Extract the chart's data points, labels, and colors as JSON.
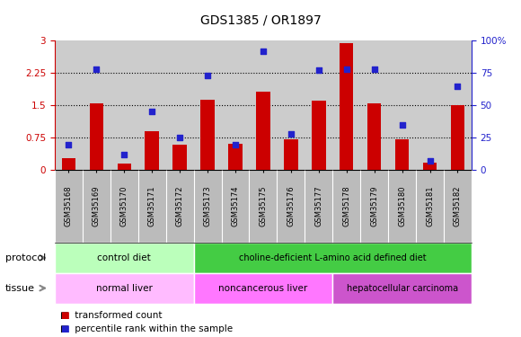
{
  "title": "GDS1385 / OR1897",
  "samples": [
    "GSM35168",
    "GSM35169",
    "GSM35170",
    "GSM35171",
    "GSM35172",
    "GSM35173",
    "GSM35174",
    "GSM35175",
    "GSM35176",
    "GSM35177",
    "GSM35178",
    "GSM35179",
    "GSM35180",
    "GSM35181",
    "GSM35182"
  ],
  "bar_values": [
    0.28,
    1.55,
    0.15,
    0.9,
    0.58,
    1.62,
    0.62,
    1.82,
    0.72,
    1.6,
    2.93,
    1.55,
    0.72,
    0.18,
    1.5
  ],
  "dot_values": [
    20,
    78,
    12,
    45,
    25,
    73,
    20,
    92,
    28,
    77,
    78,
    78,
    35,
    7,
    65
  ],
  "ylim_left": [
    0,
    3
  ],
  "ylim_right": [
    0,
    100
  ],
  "yticks_left": [
    0,
    0.75,
    1.5,
    2.25,
    3
  ],
  "yticks_right": [
    0,
    25,
    50,
    75,
    100
  ],
  "ytick_labels_left": [
    "0",
    "0.75",
    "1.5",
    "2.25",
    "3"
  ],
  "ytick_labels_right": [
    "0",
    "25",
    "50",
    "75",
    "100%"
  ],
  "protocol_groups": [
    {
      "label": "control diet",
      "start": 0,
      "end": 4,
      "color": "#bbffbb"
    },
    {
      "label": "choline-deficient L-amino acid defined diet",
      "start": 5,
      "end": 14,
      "color": "#44cc44"
    }
  ],
  "tissue_groups": [
    {
      "label": "normal liver",
      "start": 0,
      "end": 4,
      "color": "#ffbbff"
    },
    {
      "label": "noncancerous liver",
      "start": 5,
      "end": 9,
      "color": "#ff77ff"
    },
    {
      "label": "hepatocellular carcinoma",
      "start": 10,
      "end": 14,
      "color": "#cc55cc"
    }
  ],
  "bar_color": "#cc0000",
  "dot_color": "#2222cc",
  "title_fontsize": 10,
  "axis_label_color_left": "#cc0000",
  "axis_label_color_right": "#2222cc",
  "legend_items": [
    {
      "label": "transformed count",
      "color": "#cc0000"
    },
    {
      "label": "percentile rank within the sample",
      "color": "#2222cc"
    }
  ],
  "row_label_protocol": "protocol",
  "row_label_tissue": "tissue",
  "background_color": "#ffffff",
  "plot_bg_color": "#cccccc",
  "xlabels_bg_color": "#bbbbbb",
  "dotted_lines": [
    0.75,
    1.5,
    2.25
  ]
}
